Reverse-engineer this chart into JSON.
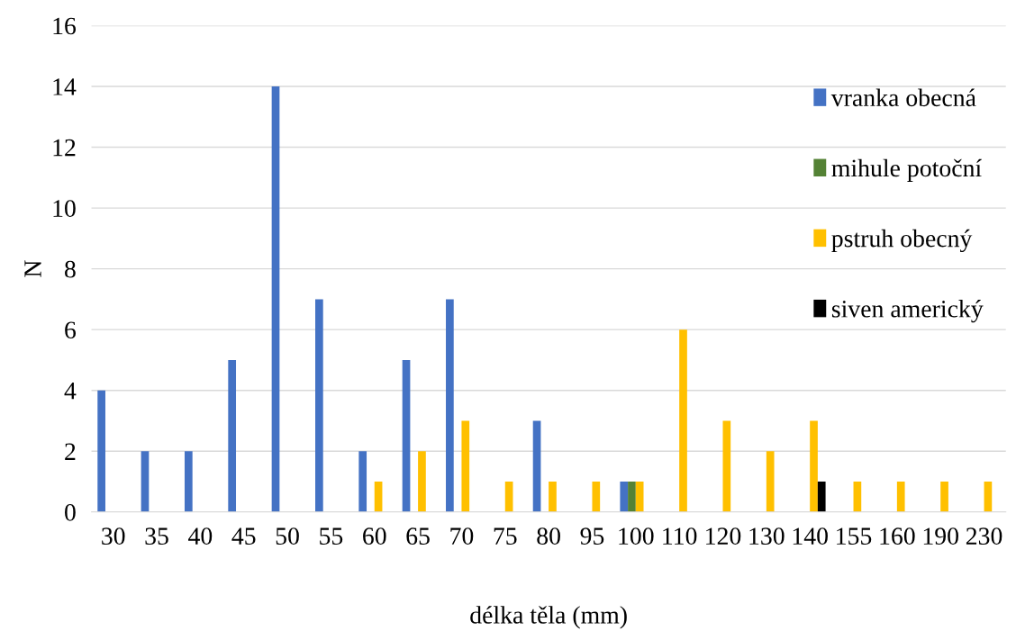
{
  "chart_data": {
    "type": "bar",
    "xlabel": "délka těla (mm)",
    "ylabel": "N",
    "categories": [
      "30",
      "35",
      "40",
      "45",
      "50",
      "55",
      "60",
      "65",
      "70",
      "75",
      "80",
      "95",
      "100",
      "110",
      "120",
      "130",
      "140",
      "155",
      "160",
      "190",
      "230"
    ],
    "series": [
      {
        "name": "vranka obecná",
        "color": "#4472c4",
        "values": [
          4,
          2,
          2,
          5,
          14,
          7,
          2,
          5,
          7,
          null,
          3,
          null,
          1,
          null,
          null,
          null,
          null,
          null,
          null,
          null,
          null
        ]
      },
      {
        "name": "mihule potoční",
        "color": "#548235",
        "values": [
          null,
          null,
          null,
          null,
          null,
          null,
          null,
          null,
          null,
          null,
          null,
          null,
          1,
          null,
          null,
          null,
          null,
          null,
          null,
          null,
          null
        ]
      },
      {
        "name": "pstruh obecný",
        "color": "#ffc000",
        "values": [
          null,
          null,
          null,
          null,
          null,
          null,
          1,
          2,
          3,
          1,
          1,
          1,
          1,
          6,
          3,
          2,
          3,
          1,
          1,
          1,
          1
        ]
      },
      {
        "name": "siven americký",
        "color": "#000000",
        "values": [
          null,
          null,
          null,
          null,
          null,
          null,
          null,
          null,
          null,
          null,
          null,
          null,
          null,
          null,
          null,
          null,
          1,
          null,
          null,
          null,
          null
        ]
      }
    ],
    "ylim": [
      0,
      16
    ],
    "yticks": [
      0,
      2,
      4,
      6,
      8,
      10,
      12,
      14,
      16
    ],
    "grid": "y",
    "legend": "right"
  }
}
